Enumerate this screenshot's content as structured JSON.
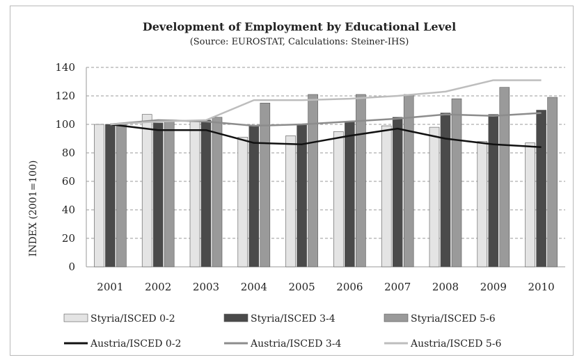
{
  "chart_data": {
    "type": "bar",
    "title": "Development of Employment by Educational Level",
    "subtitle": "(Source: EUROSTAT, Calculations: Steiner-IHS)",
    "xlabel": "",
    "ylabel": "INDEX (2001=100)",
    "ylim": [
      0,
      140
    ],
    "yticks": [
      0,
      20,
      40,
      60,
      80,
      100,
      120,
      140
    ],
    "grid": "horizontal dashed",
    "legend_position": "bottom",
    "categories": [
      "2001",
      "2002",
      "2003",
      "2004",
      "2005",
      "2006",
      "2007",
      "2008",
      "2009",
      "2010"
    ],
    "bar_series": [
      {
        "name": "Styria/ISCED 0-2",
        "color": "#e4e4e4",
        "values": [
          100,
          107,
          103,
          91,
          92,
          95,
          99,
          98,
          88,
          87
        ]
      },
      {
        "name": "Styria/ISCED 3-4",
        "color": "#4a4a4a",
        "values": [
          100,
          101,
          103,
          99,
          100,
          102,
          105,
          108,
          107,
          110
        ]
      },
      {
        "name": "Styria/ISCED 5-6",
        "color": "#9a9a9a",
        "values": [
          100,
          103,
          105,
          115,
          121,
          121,
          121,
          118,
          126,
          119
        ]
      }
    ],
    "line_series": [
      {
        "name": "Austria/ISCED 0-2",
        "color": "#111111",
        "values": [
          100,
          96,
          96,
          87,
          86,
          92,
          97,
          90,
          86,
          84
        ]
      },
      {
        "name": "Austria/ISCED 3-4",
        "color": "#8c8c8c",
        "values": [
          100,
          103,
          102,
          99,
          100,
          102,
          104,
          107,
          106,
          108
        ]
      },
      {
        "name": "Austria/ISCED 5-6",
        "color": "#bdbdbd",
        "values": [
          100,
          102,
          103,
          117,
          117,
          118,
          120,
          123,
          131,
          131
        ]
      }
    ]
  }
}
